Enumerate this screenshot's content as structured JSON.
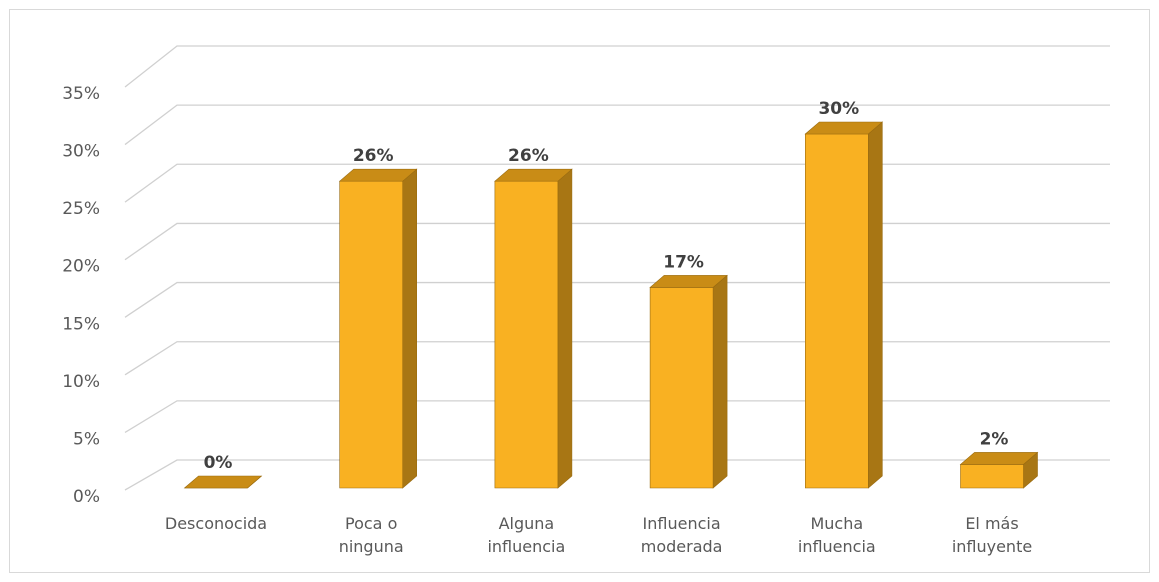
{
  "chart_data": {
    "type": "bar3d",
    "categories": [
      "Desconocida",
      "Poca o ninguna",
      "Alguna influencia",
      "Influencia moderada",
      "Mucha influencia",
      "El más influyente"
    ],
    "values": [
      0,
      26,
      26,
      17,
      30,
      2
    ],
    "value_labels": [
      "0%",
      "26%",
      "26%",
      "17%",
      "30%",
      "2%"
    ],
    "color": "#f9b122",
    "ylim": [
      0,
      35
    ],
    "yticks": [
      {
        "value": 0,
        "label": "0%"
      },
      {
        "value": 5,
        "label": "5%"
      },
      {
        "value": 10,
        "label": "10%"
      },
      {
        "value": 15,
        "label": "15%"
      },
      {
        "value": 20,
        "label": "20%"
      },
      {
        "value": 25,
        "label": "25%"
      },
      {
        "value": 30,
        "label": "30%"
      },
      {
        "value": 35,
        "label": "35%"
      }
    ],
    "grid": true
  }
}
